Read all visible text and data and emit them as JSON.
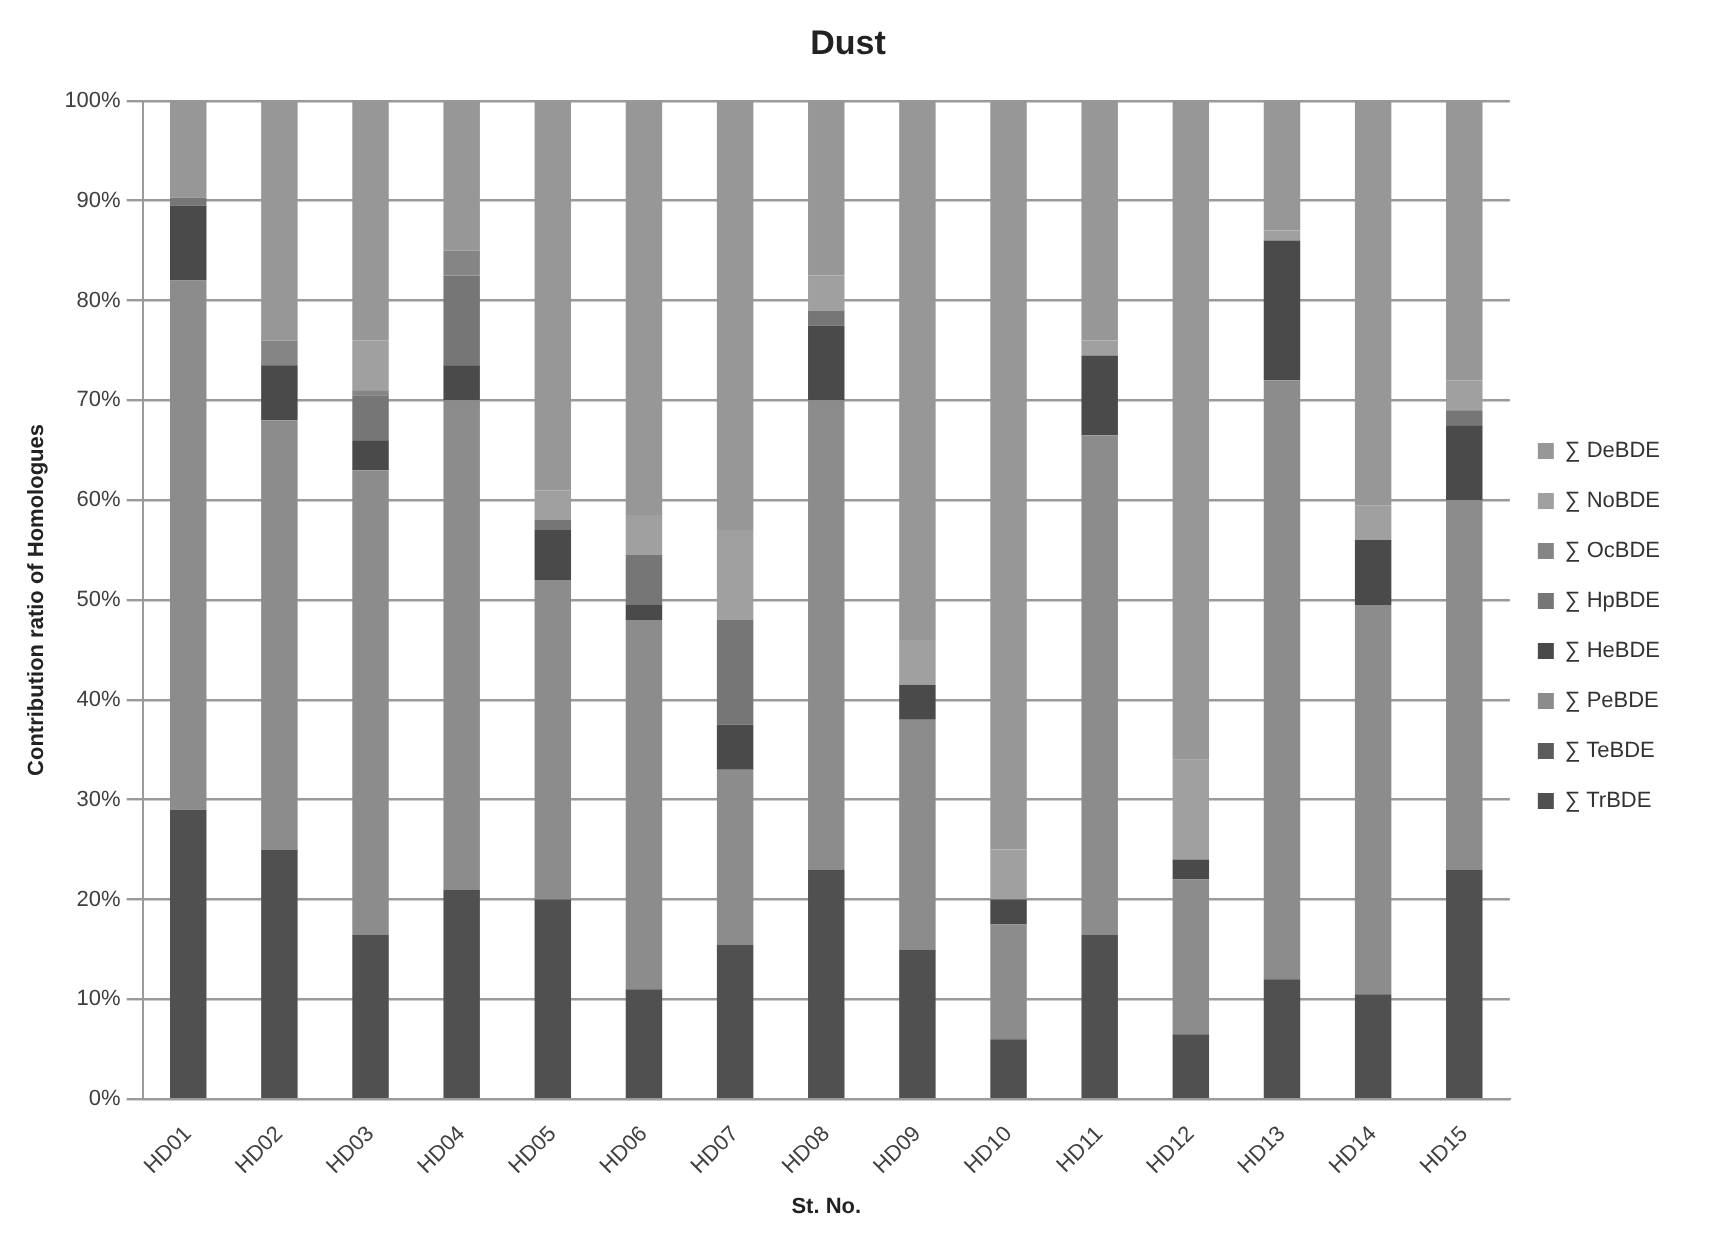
{
  "chart_data": {
    "type": "bar",
    "title": "Dust",
    "xlabel": "St. No.",
    "ylabel": "Contribution ratio of Homologues",
    "stacked": true,
    "legend": "right",
    "grid": "y",
    "categories": [
      "HD01",
      "HD02",
      "HD03",
      "HD04",
      "HD05",
      "HD06",
      "HD07",
      "HD08",
      "HD09",
      "HD10",
      "HD11",
      "HD12",
      "HD13",
      "HD14",
      "HD15"
    ],
    "ylim": [
      0,
      100
    ],
    "yticks": [
      {
        "value": 0,
        "label": "0%"
      },
      {
        "value": 10,
        "label": "10%"
      },
      {
        "value": 20,
        "label": "20%"
      },
      {
        "value": 30,
        "label": "30%"
      },
      {
        "value": 40,
        "label": "40%"
      },
      {
        "value": 50,
        "label": "50%"
      },
      {
        "value": 60,
        "label": "60%"
      },
      {
        "value": 70,
        "label": "70%"
      },
      {
        "value": 80,
        "label": "80%"
      },
      {
        "value": 90,
        "label": "90%"
      },
      {
        "value": 100,
        "label": "100%"
      }
    ],
    "series": [
      {
        "name": "∑ TrBDE",
        "color": "#505050",
        "values": [
          29,
          25,
          16.5,
          21,
          20,
          11,
          15.5,
          23,
          15,
          6,
          16.5,
          6.5,
          12,
          10.5,
          23
        ]
      },
      {
        "name": "∑ TeBDE",
        "color": "#5c5c5c",
        "values": [
          0,
          0,
          0,
          0,
          0,
          0,
          0,
          0,
          0,
          0,
          0,
          0,
          0,
          0,
          0
        ]
      },
      {
        "name": "∑ PeBDE",
        "color": "#8c8c8c",
        "values": [
          53,
          43,
          46.5,
          49,
          32,
          37,
          17.5,
          47,
          23,
          11.5,
          50,
          15.5,
          60,
          39,
          37
        ]
      },
      {
        "name": "∑ HeBDE",
        "color": "#4a4a4a",
        "values": [
          7.5,
          5.5,
          3,
          3.5,
          5,
          1.5,
          4.5,
          7.5,
          3.5,
          2.5,
          8,
          2,
          14,
          6.5,
          7.5
        ]
      },
      {
        "name": "∑ HpBDE",
        "color": "#767676",
        "values": [
          0.8,
          0,
          4.5,
          9,
          1,
          5,
          10.5,
          1.5,
          0,
          0,
          0,
          0,
          0,
          0,
          1.5
        ]
      },
      {
        "name": "∑ OcBDE",
        "color": "#858585",
        "values": [
          0,
          2.5,
          0.5,
          2.5,
          0,
          0,
          0,
          0,
          0,
          0,
          0,
          0,
          0,
          0,
          0
        ]
      },
      {
        "name": "∑ NoBDE",
        "color": "#a0a0a0",
        "values": [
          0,
          0,
          5,
          0,
          3,
          4,
          9,
          3.5,
          4.5,
          5,
          1.5,
          10,
          1,
          3.5,
          3
        ]
      },
      {
        "name": "∑ DeBDE",
        "color": "#979797",
        "values": [
          9.7,
          24,
          24,
          15,
          39,
          41.5,
          43,
          17.5,
          54,
          75,
          24,
          66,
          13,
          40.5,
          28
        ]
      }
    ]
  }
}
